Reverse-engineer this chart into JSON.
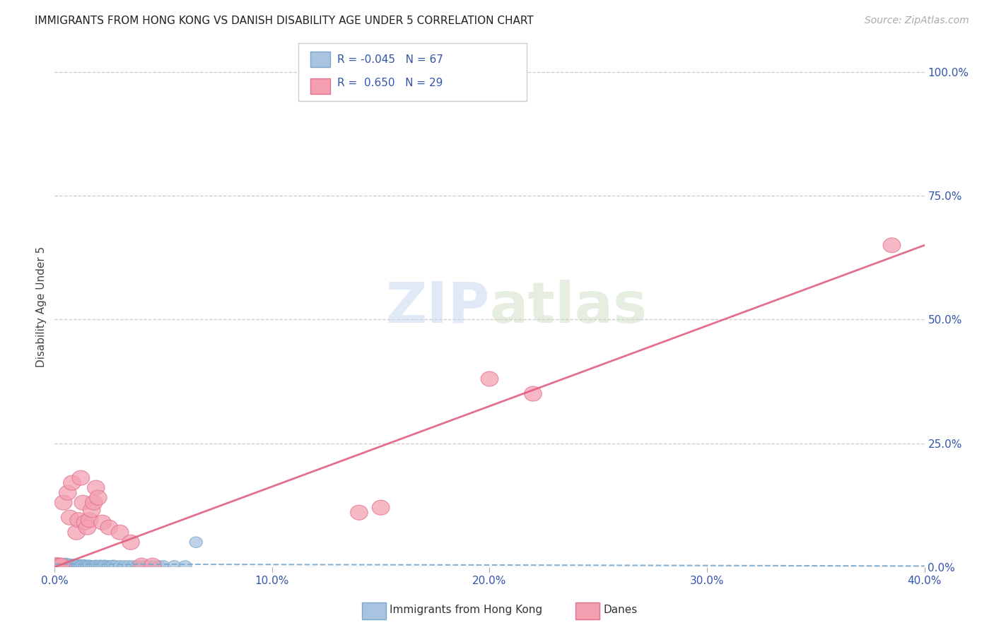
{
  "title": "IMMIGRANTS FROM HONG KONG VS DANISH DISABILITY AGE UNDER 5 CORRELATION CHART",
  "source": "Source: ZipAtlas.com",
  "ylabel_label": "Disability Age Under 5",
  "x_min": 0.0,
  "x_max": 0.4,
  "y_min": 0.0,
  "y_max": 1.05,
  "x_ticks": [
    0.0,
    0.1,
    0.2,
    0.3,
    0.4
  ],
  "x_tick_labels": [
    "0.0%",
    "10.0%",
    "20.0%",
    "30.0%",
    "40.0%"
  ],
  "y_ticks": [
    0.0,
    0.25,
    0.5,
    0.75,
    1.0
  ],
  "y_tick_labels": [
    "0.0%",
    "25.0%",
    "50.0%",
    "75.0%",
    "100.0%"
  ],
  "hk_color": "#a8c4e0",
  "hk_edge_color": "#7ba7cc",
  "dane_color": "#f4a0b0",
  "dane_edge_color": "#e07090",
  "hk_R": -0.045,
  "hk_N": 67,
  "dane_R": 0.65,
  "dane_N": 29,
  "watermark_ZIP": "ZIP",
  "watermark_atlas": "atlas",
  "background_color": "#ffffff",
  "grid_color": "#cccccc",
  "legend_label_hk": "Immigrants from Hong Kong",
  "legend_label_dane": "Danes",
  "hk_scatter_x": [
    0.001,
    0.001,
    0.002,
    0.002,
    0.002,
    0.003,
    0.003,
    0.003,
    0.003,
    0.004,
    0.004,
    0.004,
    0.005,
    0.005,
    0.005,
    0.005,
    0.006,
    0.006,
    0.006,
    0.007,
    0.007,
    0.007,
    0.008,
    0.008,
    0.008,
    0.009,
    0.009,
    0.009,
    0.01,
    0.01,
    0.011,
    0.011,
    0.012,
    0.012,
    0.013,
    0.013,
    0.014,
    0.014,
    0.015,
    0.015,
    0.016,
    0.016,
    0.017,
    0.018,
    0.019,
    0.02,
    0.021,
    0.022,
    0.023,
    0.024,
    0.025,
    0.026,
    0.027,
    0.028,
    0.03,
    0.032,
    0.034,
    0.036,
    0.038,
    0.04,
    0.042,
    0.045,
    0.048,
    0.05,
    0.055,
    0.06,
    0.065
  ],
  "hk_scatter_y": [
    0.003,
    0.005,
    0.002,
    0.004,
    0.006,
    0.002,
    0.003,
    0.005,
    0.007,
    0.002,
    0.003,
    0.004,
    0.002,
    0.003,
    0.005,
    0.007,
    0.002,
    0.004,
    0.006,
    0.002,
    0.003,
    0.005,
    0.002,
    0.003,
    0.004,
    0.002,
    0.003,
    0.005,
    0.002,
    0.003,
    0.002,
    0.004,
    0.002,
    0.003,
    0.002,
    0.004,
    0.002,
    0.003,
    0.002,
    0.003,
    0.002,
    0.003,
    0.002,
    0.002,
    0.003,
    0.002,
    0.003,
    0.002,
    0.003,
    0.002,
    0.002,
    0.002,
    0.003,
    0.002,
    0.002,
    0.002,
    0.002,
    0.002,
    0.002,
    0.002,
    0.002,
    0.002,
    0.002,
    0.002,
    0.002,
    0.002,
    0.05
  ],
  "dane_scatter_x": [
    0.001,
    0.002,
    0.003,
    0.004,
    0.006,
    0.007,
    0.008,
    0.01,
    0.011,
    0.012,
    0.013,
    0.014,
    0.015,
    0.016,
    0.017,
    0.018,
    0.019,
    0.02,
    0.022,
    0.025,
    0.03,
    0.035,
    0.04,
    0.045,
    0.14,
    0.15,
    0.2,
    0.22,
    0.385
  ],
  "dane_scatter_y": [
    0.004,
    0.003,
    0.003,
    0.13,
    0.15,
    0.1,
    0.17,
    0.07,
    0.095,
    0.18,
    0.13,
    0.09,
    0.08,
    0.095,
    0.115,
    0.13,
    0.16,
    0.14,
    0.09,
    0.08,
    0.07,
    0.05,
    0.003,
    0.003,
    0.11,
    0.12,
    0.38,
    0.35,
    0.65
  ],
  "hk_line_x": [
    0.0,
    0.4
  ],
  "hk_line_y": [
    0.006,
    0.002
  ],
  "dane_line_x": [
    0.0,
    0.4
  ],
  "dane_line_y": [
    0.0,
    0.65
  ],
  "title_fontsize": 11,
  "source_fontsize": 10,
  "tick_fontsize": 11,
  "ylabel_fontsize": 11
}
